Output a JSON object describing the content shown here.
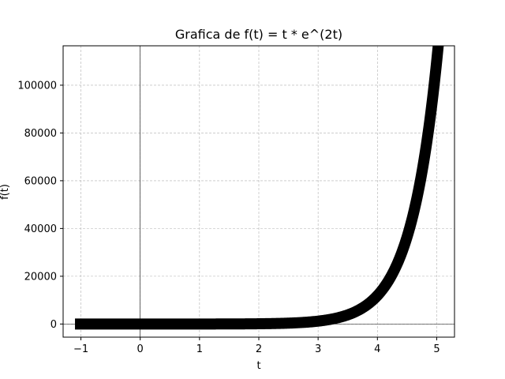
{
  "chart_data": {
    "type": "line",
    "title": "Grafica de f(t) = t * e^(2t)",
    "xlabel": "t",
    "ylabel": "f(t)",
    "xlim": [
      -1.3,
      5.3
    ],
    "ylim": [
      -5500,
      116500
    ],
    "xticks": [
      -1,
      0,
      1,
      2,
      3,
      4,
      5
    ],
    "yticks": [
      0,
      20000,
      40000,
      60000,
      80000,
      100000
    ],
    "grid": true,
    "reference_lines": {
      "x": 0,
      "y": 0
    },
    "series": [
      {
        "function": "t * e^(2t)",
        "t_range": [
          -1.1,
          5.05
        ],
        "color": "#000000",
        "points": [
          [
            -1.1,
            -0.12
          ],
          [
            -0.5,
            -0.18
          ],
          [
            0,
            0
          ],
          [
            0.5,
            1.36
          ],
          [
            1,
            7.39
          ],
          [
            1.5,
            30.1
          ],
          [
            2,
            109.2
          ],
          [
            2.5,
            371.0
          ],
          [
            3,
            1210.3
          ],
          [
            3.25,
            2164.4
          ],
          [
            3.5,
            3838.2
          ],
          [
            3.75,
            6750.9
          ],
          [
            4,
            11923.8
          ],
          [
            4.25,
            20947.3
          ],
          [
            4.5,
            36458.6
          ],
          [
            4.75,
            62923.7
          ],
          [
            4.9,
            88453.1
          ],
          [
            5,
            110132.3
          ],
          [
            5.05,
            121470.0
          ]
        ]
      }
    ]
  }
}
